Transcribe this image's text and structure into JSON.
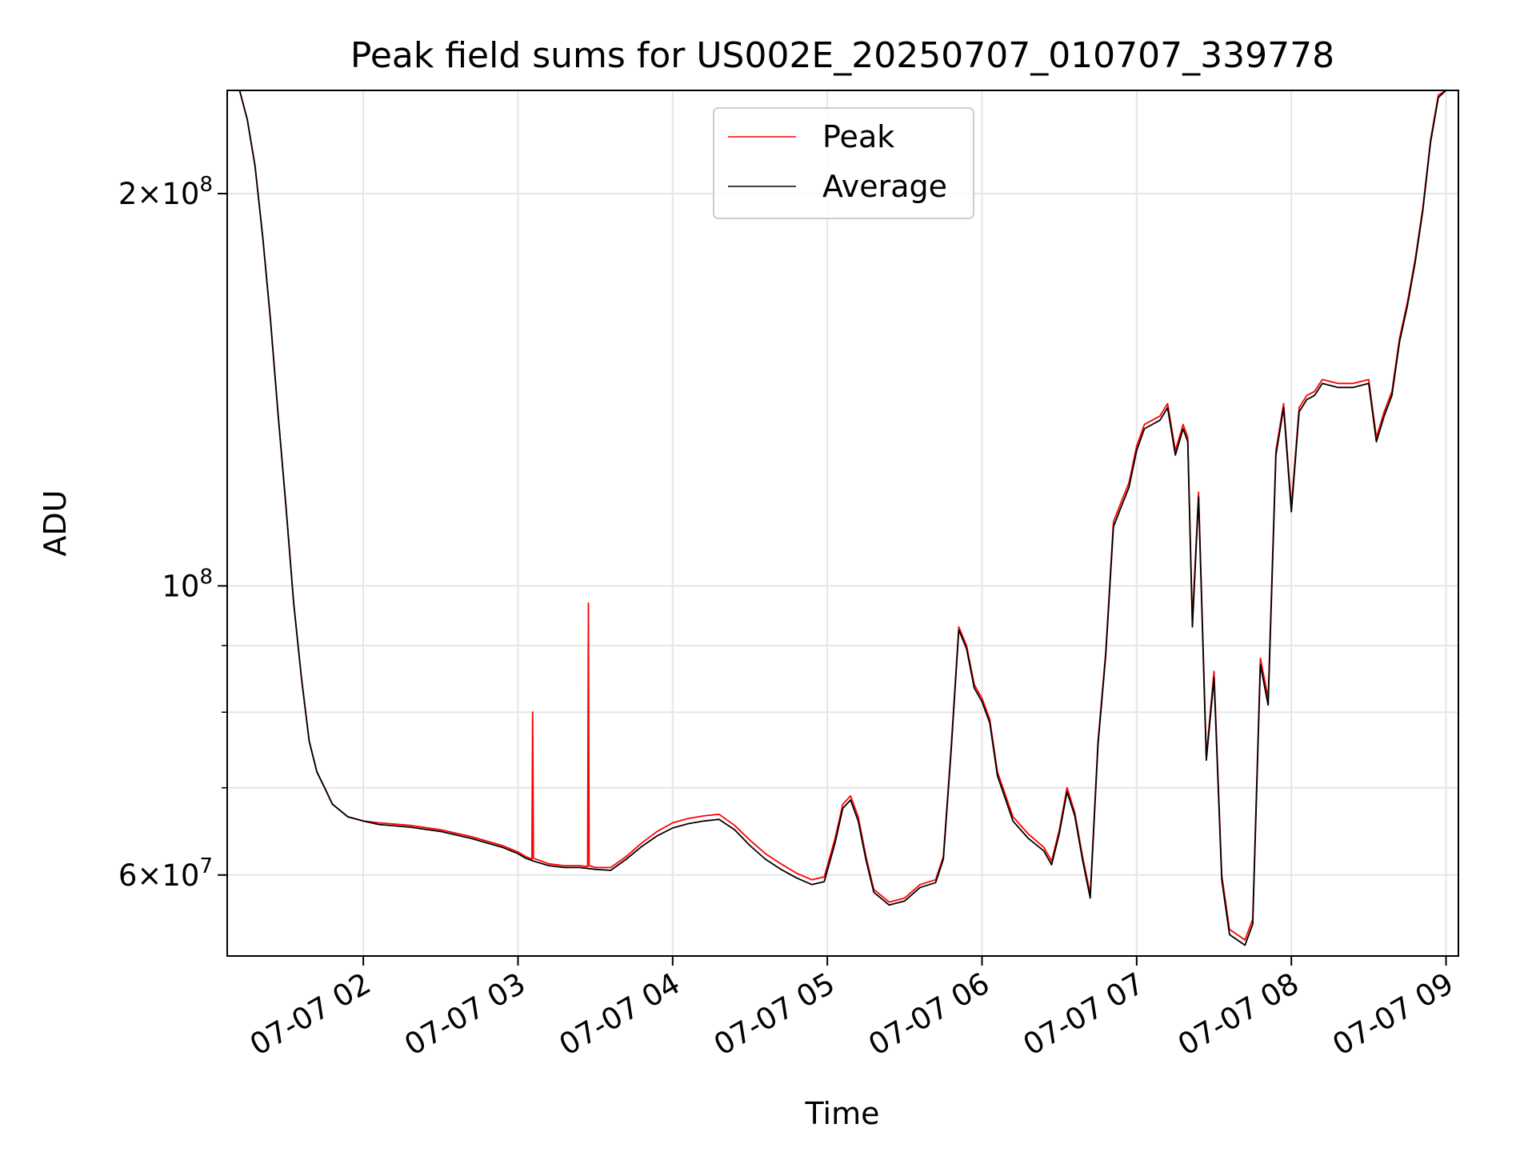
{
  "chart_data": {
    "type": "line",
    "title": "Peak field sums for US002E_20250707_010707_339778",
    "xlabel": "Time",
    "ylabel": "ADU",
    "x_tick_labels": [
      "07-07 02",
      "07-07 03",
      "07-07 04",
      "07-07 05",
      "07-07 06",
      "07-07 07",
      "07-07 08",
      "07-07 09"
    ],
    "x_ticks_hours": [
      2,
      3,
      4,
      5,
      6,
      7,
      8,
      9
    ],
    "xlim_hours": [
      1.12,
      9.08
    ],
    "y_scale": "log",
    "ylim": [
      52000000,
      240000000
    ],
    "y_major_ticks": [
      {
        "value": 200000000,
        "mantissa": "2",
        "exponent": "8"
      },
      {
        "value": 100000000,
        "mantissa": "",
        "exponent": "8"
      },
      {
        "value": 60000000,
        "mantissa": "6",
        "exponent": "7"
      }
    ],
    "y_minor_gridlines": [
      70000000,
      80000000,
      90000000
    ],
    "grid": true,
    "legend_position": "upper center",
    "series": [
      {
        "name": "Peak",
        "color": "#ff0000",
        "points": [
          [
            1.12,
            240000000
          ],
          [
            1.2,
            240000000
          ],
          [
            1.25,
            228000000
          ],
          [
            1.3,
            210000000
          ],
          [
            1.35,
            185000000
          ],
          [
            1.4,
            160000000
          ],
          [
            1.45,
            135000000
          ],
          [
            1.5,
            115000000
          ],
          [
            1.55,
            97000000
          ],
          [
            1.6,
            85000000
          ],
          [
            1.65,
            76000000
          ],
          [
            1.7,
            72000000
          ],
          [
            1.75,
            70000000
          ],
          [
            1.8,
            68000000
          ],
          [
            1.9,
            66500000
          ],
          [
            2.0,
            66000000
          ],
          [
            2.1,
            65800000
          ],
          [
            2.3,
            65500000
          ],
          [
            2.5,
            65000000
          ],
          [
            2.7,
            64200000
          ],
          [
            2.9,
            63200000
          ],
          [
            3.0,
            62500000
          ],
          [
            3.05,
            62000000
          ],
          [
            3.09,
            61700000
          ],
          [
            3.095,
            80000000
          ],
          [
            3.1,
            61800000
          ],
          [
            3.2,
            61200000
          ],
          [
            3.3,
            61000000
          ],
          [
            3.4,
            61000000
          ],
          [
            3.45,
            60900000
          ],
          [
            3.455,
            97000000
          ],
          [
            3.46,
            61000000
          ],
          [
            3.5,
            60800000
          ],
          [
            3.6,
            60800000
          ],
          [
            3.7,
            62000000
          ],
          [
            3.8,
            63500000
          ],
          [
            3.9,
            64800000
          ],
          [
            4.0,
            65800000
          ],
          [
            4.1,
            66300000
          ],
          [
            4.2,
            66600000
          ],
          [
            4.3,
            66800000
          ],
          [
            4.4,
            65500000
          ],
          [
            4.5,
            63800000
          ],
          [
            4.6,
            62300000
          ],
          [
            4.7,
            61200000
          ],
          [
            4.8,
            60200000
          ],
          [
            4.9,
            59500000
          ],
          [
            4.98,
            59800000
          ],
          [
            5.05,
            64000000
          ],
          [
            5.1,
            68000000
          ],
          [
            5.15,
            69000000
          ],
          [
            5.2,
            66500000
          ],
          [
            5.25,
            62000000
          ],
          [
            5.3,
            58500000
          ],
          [
            5.4,
            57200000
          ],
          [
            5.5,
            57600000
          ],
          [
            5.6,
            59000000
          ],
          [
            5.7,
            59500000
          ],
          [
            5.75,
            62000000
          ],
          [
            5.8,
            75000000
          ],
          [
            5.85,
            93000000
          ],
          [
            5.9,
            90000000
          ],
          [
            5.95,
            84000000
          ],
          [
            6.0,
            82000000
          ],
          [
            6.05,
            79000000
          ],
          [
            6.1,
            72000000
          ],
          [
            6.2,
            66500000
          ],
          [
            6.3,
            64500000
          ],
          [
            6.4,
            63000000
          ],
          [
            6.45,
            61500000
          ],
          [
            6.5,
            65000000
          ],
          [
            6.55,
            70000000
          ],
          [
            6.6,
            67000000
          ],
          [
            6.65,
            62000000
          ],
          [
            6.7,
            58000000
          ],
          [
            6.75,
            76000000
          ],
          [
            6.8,
            89000000
          ],
          [
            6.85,
            112000000
          ],
          [
            6.9,
            116000000
          ],
          [
            6.95,
            120000000
          ],
          [
            7.0,
            128000000
          ],
          [
            7.05,
            133000000
          ],
          [
            7.1,
            134000000
          ],
          [
            7.15,
            135000000
          ],
          [
            7.2,
            138000000
          ],
          [
            7.25,
            127000000
          ],
          [
            7.3,
            133000000
          ],
          [
            7.33,
            130000000
          ],
          [
            7.36,
            94000000
          ],
          [
            7.4,
            118000000
          ],
          [
            7.45,
            74000000
          ],
          [
            7.5,
            86000000
          ],
          [
            7.55,
            60000000
          ],
          [
            7.6,
            54500000
          ],
          [
            7.7,
            53500000
          ],
          [
            7.75,
            55500000
          ],
          [
            7.8,
            88000000
          ],
          [
            7.85,
            82000000
          ],
          [
            7.9,
            127000000
          ],
          [
            7.95,
            138000000
          ],
          [
            8.0,
            115000000
          ],
          [
            8.05,
            137000000
          ],
          [
            8.1,
            140000000
          ],
          [
            8.15,
            141000000
          ],
          [
            8.2,
            144000000
          ],
          [
            8.3,
            143000000
          ],
          [
            8.4,
            143000000
          ],
          [
            8.5,
            144000000
          ],
          [
            8.55,
            130000000
          ],
          [
            8.6,
            136000000
          ],
          [
            8.65,
            141000000
          ],
          [
            8.7,
            155000000
          ],
          [
            8.75,
            165000000
          ],
          [
            8.8,
            178000000
          ],
          [
            8.85,
            195000000
          ],
          [
            8.9,
            220000000
          ],
          [
            8.95,
            238000000
          ],
          [
            9.0,
            240000000
          ],
          [
            9.08,
            240000000
          ]
        ]
      },
      {
        "name": "Average",
        "color": "#000000",
        "points": [
          [
            1.12,
            240000000
          ],
          [
            1.2,
            240000000
          ],
          [
            1.25,
            228000000
          ],
          [
            1.3,
            210000000
          ],
          [
            1.35,
            185000000
          ],
          [
            1.4,
            160000000
          ],
          [
            1.45,
            135000000
          ],
          [
            1.5,
            115000000
          ],
          [
            1.55,
            97000000
          ],
          [
            1.6,
            85000000
          ],
          [
            1.65,
            76000000
          ],
          [
            1.7,
            72000000
          ],
          [
            1.75,
            70000000
          ],
          [
            1.8,
            68000000
          ],
          [
            1.9,
            66500000
          ],
          [
            2.0,
            66000000
          ],
          [
            2.1,
            65600000
          ],
          [
            2.3,
            65300000
          ],
          [
            2.5,
            64800000
          ],
          [
            2.7,
            64000000
          ],
          [
            2.9,
            63000000
          ],
          [
            3.0,
            62300000
          ],
          [
            3.05,
            61800000
          ],
          [
            3.1,
            61500000
          ],
          [
            3.2,
            61000000
          ],
          [
            3.3,
            60800000
          ],
          [
            3.4,
            60800000
          ],
          [
            3.5,
            60600000
          ],
          [
            3.6,
            60500000
          ],
          [
            3.7,
            61700000
          ],
          [
            3.8,
            63100000
          ],
          [
            3.9,
            64300000
          ],
          [
            4.0,
            65200000
          ],
          [
            4.1,
            65700000
          ],
          [
            4.2,
            66000000
          ],
          [
            4.3,
            66200000
          ],
          [
            4.4,
            65000000
          ],
          [
            4.5,
            63200000
          ],
          [
            4.6,
            61700000
          ],
          [
            4.7,
            60600000
          ],
          [
            4.8,
            59700000
          ],
          [
            4.9,
            59000000
          ],
          [
            4.98,
            59300000
          ],
          [
            5.05,
            63500000
          ],
          [
            5.1,
            67500000
          ],
          [
            5.15,
            68500000
          ],
          [
            5.2,
            66000000
          ],
          [
            5.25,
            61600000
          ],
          [
            5.3,
            58200000
          ],
          [
            5.4,
            56900000
          ],
          [
            5.5,
            57300000
          ],
          [
            5.6,
            58700000
          ],
          [
            5.7,
            59200000
          ],
          [
            5.75,
            61700000
          ],
          [
            5.8,
            74500000
          ],
          [
            5.85,
            92500000
          ],
          [
            5.9,
            89500000
          ],
          [
            5.95,
            83500000
          ],
          [
            6.0,
            81500000
          ],
          [
            6.05,
            78500000
          ],
          [
            6.1,
            71500000
          ],
          [
            6.2,
            66000000
          ],
          [
            6.3,
            64000000
          ],
          [
            6.4,
            62600000
          ],
          [
            6.45,
            61100000
          ],
          [
            6.5,
            64600000
          ],
          [
            6.55,
            69500000
          ],
          [
            6.6,
            66600000
          ],
          [
            6.65,
            61600000
          ],
          [
            6.7,
            57600000
          ],
          [
            6.75,
            75500000
          ],
          [
            6.8,
            88500000
          ],
          [
            6.85,
            111000000
          ],
          [
            6.9,
            115000000
          ],
          [
            6.95,
            119000000
          ],
          [
            7.0,
            127000000
          ],
          [
            7.05,
            132000000
          ],
          [
            7.1,
            133000000
          ],
          [
            7.15,
            134000000
          ],
          [
            7.2,
            137000000
          ],
          [
            7.25,
            126000000
          ],
          [
            7.3,
            132000000
          ],
          [
            7.33,
            129000000
          ],
          [
            7.36,
            93000000
          ],
          [
            7.4,
            117000000
          ],
          [
            7.45,
            73500000
          ],
          [
            7.5,
            85000000
          ],
          [
            7.55,
            59500000
          ],
          [
            7.6,
            54000000
          ],
          [
            7.7,
            53000000
          ],
          [
            7.75,
            55000000
          ],
          [
            7.8,
            87000000
          ],
          [
            7.85,
            81000000
          ],
          [
            7.9,
            126000000
          ],
          [
            7.95,
            137000000
          ],
          [
            8.0,
            114000000
          ],
          [
            8.05,
            136000000
          ],
          [
            8.1,
            139000000
          ],
          [
            8.15,
            140000000
          ],
          [
            8.2,
            143000000
          ],
          [
            8.3,
            142000000
          ],
          [
            8.4,
            142000000
          ],
          [
            8.5,
            143000000
          ],
          [
            8.55,
            129000000
          ],
          [
            8.6,
            135000000
          ],
          [
            8.65,
            140000000
          ],
          [
            8.7,
            154000000
          ],
          [
            8.75,
            164000000
          ],
          [
            8.8,
            177000000
          ],
          [
            8.85,
            194000000
          ],
          [
            8.9,
            219000000
          ],
          [
            8.95,
            237000000
          ],
          [
            9.0,
            240000000
          ],
          [
            9.08,
            240000000
          ]
        ]
      }
    ]
  }
}
